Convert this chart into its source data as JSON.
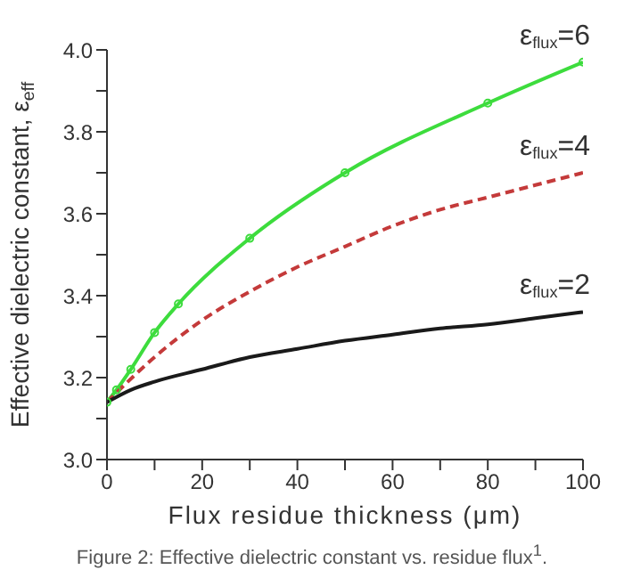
{
  "chart_data": {
    "type": "line",
    "xlabel": "Flux residue thickness (μm)",
    "ylabel": "Effective dielectric constant, ε$_{eff}$",
    "annotations": [
      "Figure 2: Effective dielectric constant vs. residue flux$^{1}$."
    ],
    "xlim": [
      0,
      100
    ],
    "xticks": [
      0,
      {
        "value": 10,
        "label": null
      },
      20,
      {
        "value": 30,
        "label": null
      },
      40,
      {
        "value": 50,
        "label": null
      },
      60,
      {
        "value": 70,
        "label": null
      },
      80,
      {
        "value": 90,
        "label": null
      },
      100
    ],
    "ylim": [
      3.0,
      4.0
    ],
    "yticks": [
      {
        "value": 3.0,
        "label": "3.0"
      },
      {
        "value": 3.1,
        "label": null
      },
      3.2,
      {
        "value": 3.3,
        "label": null
      },
      3.4,
      {
        "value": 3.5,
        "label": null
      },
      3.6,
      {
        "value": 3.7,
        "label": null
      },
      3.8,
      {
        "value": 3.9,
        "label": null
      },
      {
        "value": 4.0,
        "label": "4.0"
      }
    ],
    "grid": false,
    "legend": false,
    "series": [
      {
        "name": "ε$_{flux}$=6",
        "color": "#3ddc3d",
        "line_style": "solid",
        "marker": "circle",
        "x": [
          0,
          2,
          5,
          10,
          15,
          30,
          50,
          80,
          100
        ],
        "values": [
          3.14,
          3.17,
          3.22,
          3.31,
          3.38,
          3.54,
          3.7,
          3.87,
          3.97
        ]
      },
      {
        "name": "ε$_{flux}$=4",
        "color": "#c43a3a",
        "line_style": "dashed",
        "marker": "none",
        "x": [
          0,
          10,
          20,
          30,
          40,
          50,
          60,
          70,
          80,
          90,
          100
        ],
        "values": [
          3.14,
          3.25,
          3.34,
          3.41,
          3.47,
          3.52,
          3.57,
          3.61,
          3.64,
          3.67,
          3.7
        ]
      },
      {
        "name": "ε$_{flux}$=2",
        "color": "#1a1a1a",
        "line_style": "solid",
        "marker": "none",
        "x": [
          0,
          5,
          10,
          20,
          30,
          40,
          50,
          60,
          70,
          80,
          90,
          100
        ],
        "values": [
          3.14,
          3.17,
          3.19,
          3.22,
          3.25,
          3.27,
          3.29,
          3.305,
          3.32,
          3.33,
          3.345,
          3.36
        ]
      }
    ]
  }
}
